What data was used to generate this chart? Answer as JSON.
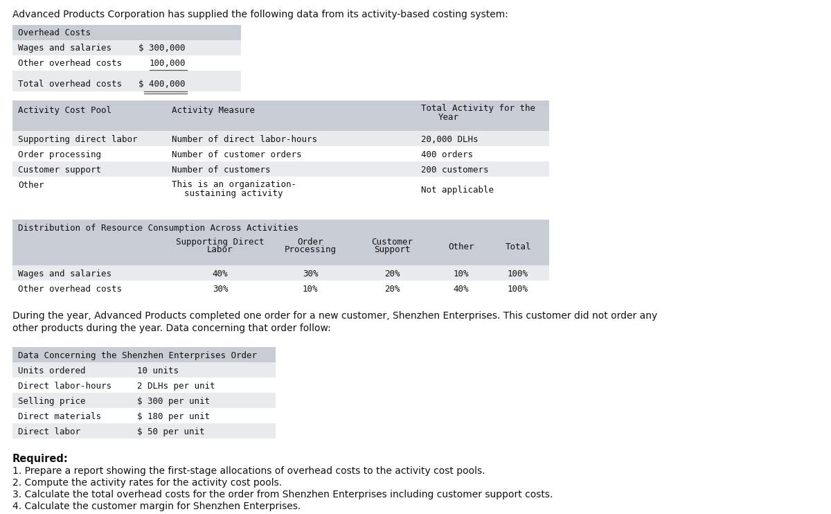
{
  "title": "Advanced Products Corporation has supplied the following data from its activity-based costing system:",
  "bg_color": "#ffffff",
  "header_color": "#c8ccd4",
  "row_color_a": "#e8eaee",
  "row_color_b": "#ffffff",
  "mono": "monospace",
  "sans": "DejaVu Sans",
  "table1": {
    "header": "Overhead Costs",
    "rows": [
      [
        "Wages and salaries",
        "$ 300,000"
      ],
      [
        "Other overhead costs",
        "100,000"
      ],
      [
        "Total overhead costs",
        "$ 400,000"
      ]
    ]
  },
  "table2_header_line1": "Total Activity for the",
  "table2_header_line2": "Year",
  "table2_rows": [
    [
      "Supporting direct labor",
      "Number of direct labor-hours",
      "20,000 DLHs"
    ],
    [
      "Order processing",
      "Number of customer orders",
      "400 orders"
    ],
    [
      "Customer support",
      "Number of customers",
      "200 customers"
    ],
    [
      "Other",
      "This is an organization-\n    sustaining activity",
      "Not applicable"
    ]
  ],
  "table3_header": "Distribution of Resource Consumption Across Activities",
  "table3_col2a": "Supporting Direct",
  "table3_col2b": "Labor",
  "table3_col3a": "Order",
  "table3_col3b": "Processing",
  "table3_col4a": "Customer",
  "table3_col4b": "Support",
  "table3_col5": "Other",
  "table3_col6": "Total",
  "table3_rows": [
    [
      "Wages and salaries",
      "40%",
      "30%",
      "20%",
      "10%",
      "100%"
    ],
    [
      "Other overhead costs",
      "30%",
      "10%",
      "20%",
      "40%",
      "100%"
    ]
  ],
  "paragraph_line1": "During the year, Advanced Products completed one order for a new customer, Shenzhen Enterprises. This customer did not order any",
  "paragraph_line2": "other products during the year. Data concerning that order follow:",
  "table4_header": "Data Concerning the Shenzhen Enterprises Order",
  "table4_rows": [
    [
      "Units ordered",
      "10 units"
    ],
    [
      "Direct labor-hours",
      "2 DLHs per unit"
    ],
    [
      "Selling price",
      "$ 300 per unit"
    ],
    [
      "Direct materials",
      "$ 180 per unit"
    ],
    [
      "Direct labor",
      "$ 50 per unit"
    ]
  ],
  "req_title": "Required:",
  "req_items": [
    "1. Prepare a report showing the first-stage allocations of overhead costs to the activity cost pools.",
    "2. Compute the activity rates for the activity cost pools.",
    "3. Calculate the total overhead costs for the order from Shenzhen Enterprises including customer support costs.",
    "4. Calculate the customer margin for Shenzhen Enterprises."
  ]
}
